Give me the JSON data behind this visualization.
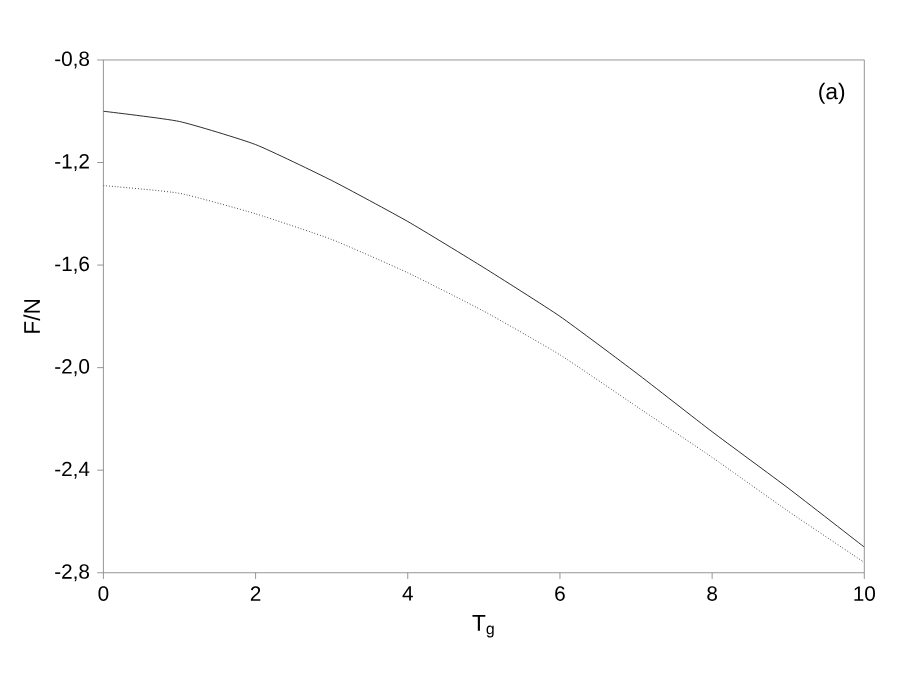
{
  "chart_data": {
    "type": "line",
    "xlabel": "T$_{g}$",
    "ylabel": "F/N",
    "annotations": [
      "(a)"
    ],
    "x": [
      0,
      1,
      2,
      3,
      4,
      5,
      6,
      7,
      8,
      9,
      10
    ],
    "xlim": [
      0,
      10
    ],
    "xticks": [
      0,
      2,
      4,
      6,
      8,
      10
    ],
    "ylim": [
      -2.8,
      -0.8
    ],
    "yticks": [
      {
        "value": -0.8,
        "label": "-0,8"
      },
      {
        "value": -1.2,
        "label": "-1,2"
      },
      {
        "value": -1.6,
        "label": "-1,6"
      },
      {
        "value": -2.0,
        "label": "-2,0"
      },
      {
        "value": -2.4,
        "label": "-2,4"
      },
      {
        "value": -2.8,
        "label": "-2,8"
      }
    ],
    "grid": false,
    "legend": false,
    "marker": "none",
    "series": [
      {
        "color": "#000000",
        "line_style": "solid",
        "values": [
          -1.0,
          -1.04,
          -1.13,
          -1.27,
          -1.43,
          -1.61,
          -1.8,
          -2.02,
          -2.25,
          -2.47,
          -2.7
        ]
      },
      {
        "color": "#000000",
        "line_style": "dotted",
        "values": [
          -1.29,
          -1.32,
          -1.4,
          -1.5,
          -1.63,
          -1.78,
          -1.95,
          -2.15,
          -2.35,
          -2.56,
          -2.76
        ]
      }
    ]
  }
}
